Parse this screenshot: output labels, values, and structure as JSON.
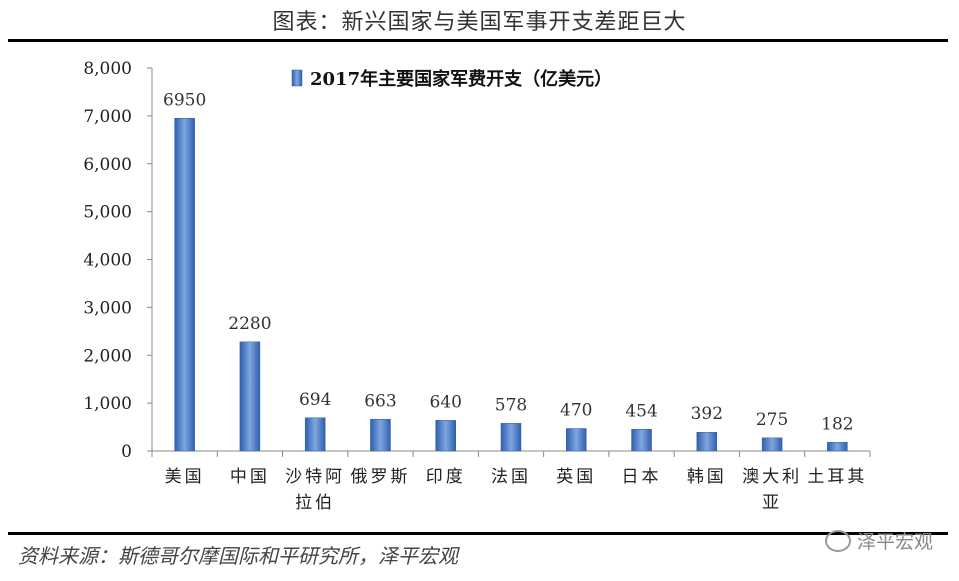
{
  "figure_title": "图表：新兴国家与美国军事开支差距巨大",
  "source": "资料来源：斯德哥尔摩国际和平研究所，泽平宏观",
  "watermark": "泽平宏观",
  "chart_data": {
    "type": "bar",
    "categories": [
      "美国",
      "中国",
      "沙特阿拉伯",
      "俄罗斯",
      "印度",
      "法国",
      "英国",
      "日本",
      "韩国",
      "澳大利亚",
      "土耳其"
    ],
    "category_lines": [
      [
        "美国"
      ],
      [
        "中国"
      ],
      [
        "沙特阿",
        "拉伯"
      ],
      [
        "俄罗斯"
      ],
      [
        "印度"
      ],
      [
        "法国"
      ],
      [
        "英国"
      ],
      [
        "日本"
      ],
      [
        "韩国"
      ],
      [
        "澳大利",
        "亚"
      ],
      [
        "土耳其"
      ]
    ],
    "series": [
      {
        "name": "2017年主要国家军费开支（亿美元）",
        "values": [
          6950,
          2280,
          694,
          663,
          640,
          578,
          470,
          454,
          392,
          275,
          182
        ]
      }
    ],
    "ylim": [
      0,
      8000
    ],
    "yticks": [
      "0",
      "1,000",
      "2,000",
      "3,000",
      "4,000",
      "5,000",
      "6,000",
      "7,000",
      "8,000"
    ],
    "legend_position": "top-center",
    "bar_color": "#4a7cc6",
    "grid": false
  }
}
